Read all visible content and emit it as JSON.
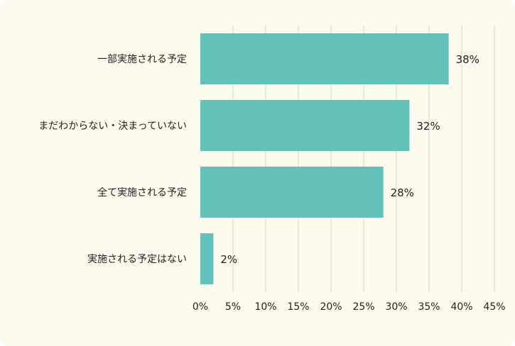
{
  "chart_data": {
    "type": "bar",
    "orientation": "horizontal",
    "categories": [
      "一部実施される予定",
      "まだわからない・決まっていない",
      "全て実施される予定",
      "実施される予定はない"
    ],
    "values": [
      38,
      32,
      28,
      2
    ],
    "value_labels": [
      "38%",
      "32%",
      "28%",
      "2%"
    ],
    "x_ticks": [
      "0%",
      "5%",
      "10%",
      "15%",
      "20%",
      "25%",
      "30%",
      "35%",
      "40%",
      "45%"
    ],
    "xlim": [
      0,
      45
    ],
    "grid": true,
    "legend": "none",
    "bar_color": "#62c1ba",
    "background_color": "#fcfbee"
  }
}
